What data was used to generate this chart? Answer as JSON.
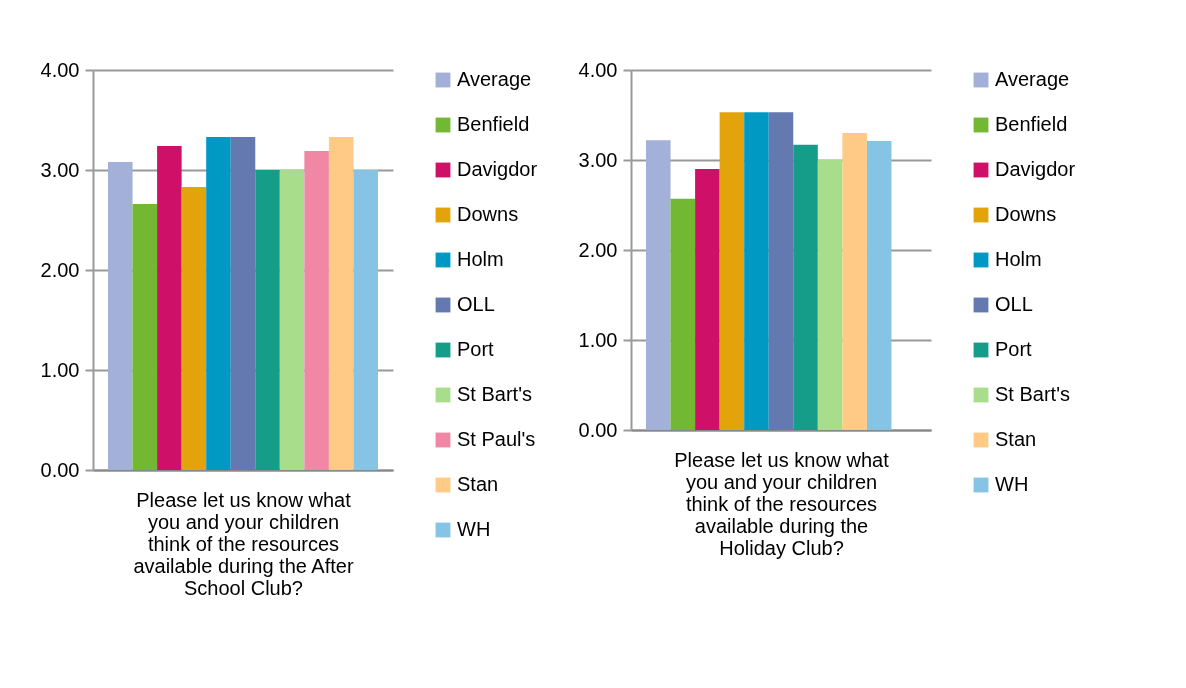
{
  "chart_data": [
    {
      "type": "bar",
      "xlabel": "Please let us know what you and your children think of the resources available during the After School Club?",
      "categories": [
        null
      ],
      "ylim": [
        0,
        4
      ],
      "yticks": [
        {
          "value": 0,
          "label": "0.00"
        },
        {
          "value": 1,
          "label": "1.00"
        },
        {
          "value": 2,
          "label": "2.00"
        },
        {
          "value": 3,
          "label": "3.00"
        },
        {
          "value": 4,
          "label": "4.00"
        }
      ],
      "grid": "y",
      "legend": "right",
      "series": [
        {
          "name": "Average",
          "color": "#a3b0d8",
          "values": [
            3.08
          ]
        },
        {
          "name": "Benfield",
          "color": "#72b833",
          "values": [
            2.66
          ]
        },
        {
          "name": "Davigdor",
          "color": "#cf1068",
          "values": [
            3.24
          ]
        },
        {
          "name": "Downs",
          "color": "#e2a30b",
          "values": [
            2.83
          ]
        },
        {
          "name": "Holm",
          "color": "#0099c4",
          "values": [
            3.33
          ]
        },
        {
          "name": "OLL",
          "color": "#6479b0",
          "values": [
            3.33
          ]
        },
        {
          "name": "Port",
          "color": "#159d8a",
          "values": [
            3.0
          ]
        },
        {
          "name": "St Bart's",
          "color": "#a8dd8c",
          "values": [
            3.0
          ]
        },
        {
          "name": "St Paul's",
          "color": "#ef87a5",
          "values": [
            3.19
          ]
        },
        {
          "name": "Stan",
          "color": "#ffca85",
          "values": [
            3.33
          ]
        },
        {
          "name": "WH",
          "color": "#86c4e6",
          "values": [
            3.0
          ]
        }
      ]
    },
    {
      "type": "bar",
      "xlabel": "Please let us know what you and your children think of the resources available during the Holiday Club?",
      "categories": [
        null
      ],
      "ylim": [
        0,
        4
      ],
      "yticks": [
        {
          "value": 0,
          "label": "0.00"
        },
        {
          "value": 1,
          "label": "1.00"
        },
        {
          "value": 2,
          "label": "2.00"
        },
        {
          "value": 3,
          "label": "3.00"
        },
        {
          "value": 4,
          "label": "4.00"
        }
      ],
      "grid": "y",
      "legend": "right",
      "series": [
        {
          "name": "Average",
          "color": "#a3b0d8",
          "values": [
            3.22
          ]
        },
        {
          "name": "Benfield",
          "color": "#72b833",
          "values": [
            2.57
          ]
        },
        {
          "name": "Davigdor",
          "color": "#cf1068",
          "values": [
            2.9
          ]
        },
        {
          "name": "Downs",
          "color": "#e2a30b",
          "values": [
            3.53
          ]
        },
        {
          "name": "Holm",
          "color": "#0099c4",
          "values": [
            3.53
          ]
        },
        {
          "name": "OLL",
          "color": "#6479b0",
          "values": [
            3.53
          ]
        },
        {
          "name": "Port",
          "color": "#159d8a",
          "values": [
            3.17
          ]
        },
        {
          "name": "St Bart's",
          "color": "#a8dd8c",
          "values": [
            3.0
          ]
        },
        {
          "name": "Stan",
          "color": "#ffca85",
          "values": [
            3.3
          ]
        },
        {
          "name": "WH",
          "color": "#86c4e6",
          "values": [
            3.21
          ]
        }
      ]
    }
  ]
}
